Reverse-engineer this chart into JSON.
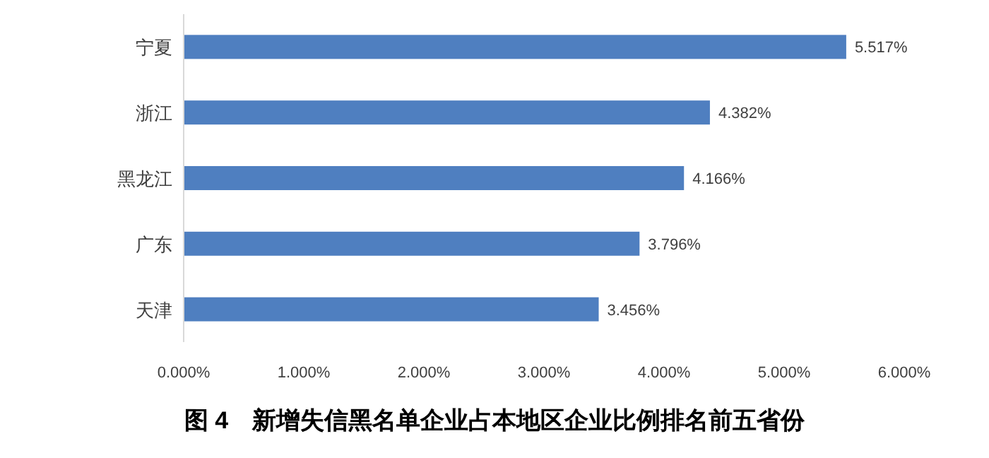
{
  "chart_data": {
    "type": "bar",
    "orientation": "horizontal",
    "title": "图 4　新增失信黑名单企业占本地区企业比例排名前五省份",
    "categories": [
      "宁夏",
      "浙江",
      "黑龙江",
      "广东",
      "天津"
    ],
    "values": [
      5.517,
      4.382,
      4.166,
      3.796,
      3.456
    ],
    "value_labels": [
      "5.517%",
      "4.382%",
      "4.166%",
      "3.796%",
      "3.456%"
    ],
    "color": "#4f7fc0",
    "xlim": [
      0,
      6
    ],
    "xticks": [
      {
        "value": 0,
        "label": "0.000%"
      },
      {
        "value": 1,
        "label": "1.000%"
      },
      {
        "value": 2,
        "label": "2.000%"
      },
      {
        "value": 3,
        "label": "3.000%"
      },
      {
        "value": 4,
        "label": "4.000%"
      },
      {
        "value": 5,
        "label": "5.000%"
      },
      {
        "value": 6,
        "label": "6.000%"
      }
    ]
  }
}
